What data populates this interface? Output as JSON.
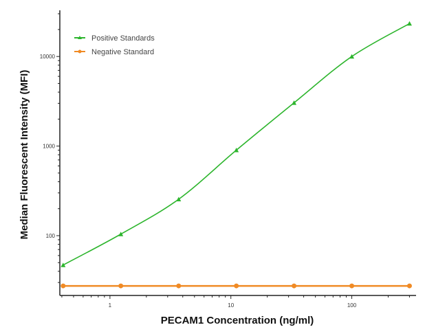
{
  "chart_data": {
    "type": "line",
    "title": "",
    "xlabel": "PECAM1 Concentration (ng/ml)",
    "ylabel": "Median Fluorescent Intensity  (MFI)",
    "xscale": "log",
    "yscale": "log",
    "xlim": [
      0.385,
      340
    ],
    "ylim": [
      21.5,
      30000
    ],
    "xticks": [
      {
        "value": 1,
        "label": "1"
      },
      {
        "value": 10,
        "label": "10"
      },
      {
        "value": 100,
        "label": "100"
      }
    ],
    "yticks": [
      {
        "value": 100,
        "label": "100"
      },
      {
        "value": 1000,
        "label": "1000"
      },
      {
        "value": 10000,
        "label": "10000"
      }
    ],
    "grid": false,
    "legend_position": "top-left",
    "series": [
      {
        "name": "Positive Standards",
        "color": "#2db52d",
        "marker": "triangle",
        "x": [
          0.41,
          1.23,
          3.7,
          11.1,
          33.3,
          100,
          300
        ],
        "y": [
          47,
          104,
          255,
          900,
          3040,
          10000,
          23300
        ]
      },
      {
        "name": "Negative Standard",
        "color": "#f08a24",
        "marker": "circle",
        "x": [
          0.41,
          1.23,
          3.7,
          11.1,
          33.3,
          100,
          300
        ],
        "y": [
          27.5,
          27.5,
          27.5,
          27.5,
          27.5,
          27.5,
          27.5
        ]
      }
    ]
  }
}
